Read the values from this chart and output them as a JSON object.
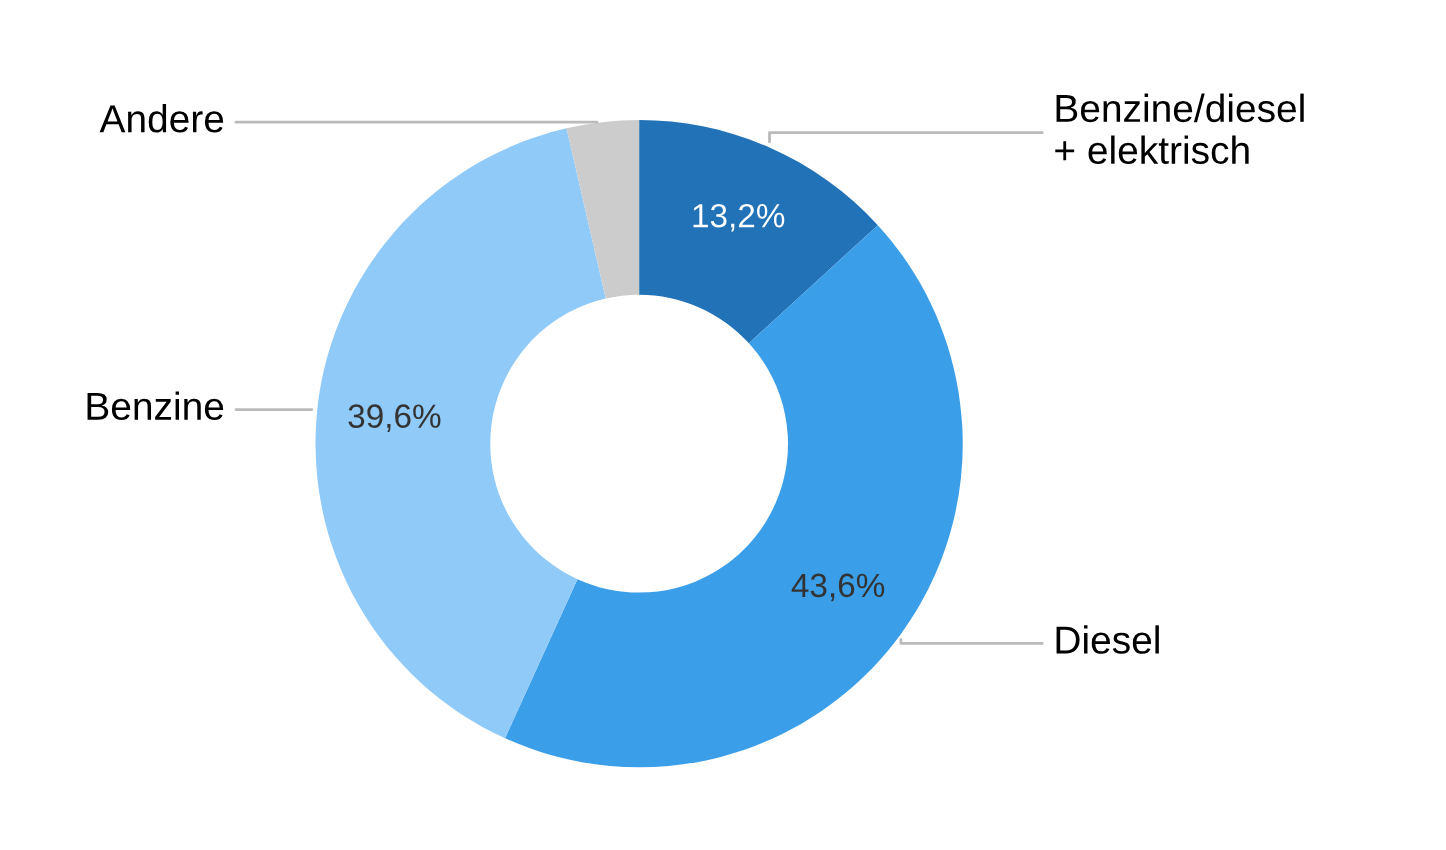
{
  "chart_data": {
    "type": "donut",
    "categories": [
      "Benzine/diesel\n+ elektrisch",
      "Diesel",
      "Benzine",
      "Andere"
    ],
    "values": [
      13.2,
      43.6,
      39.6,
      3.6
    ],
    "colors": [
      "#2272b8",
      "#3a9ee8",
      "#90caf9",
      "#cccccc"
    ],
    "value_labels": [
      "13,2%",
      "43,6%",
      "39,6%",
      null
    ],
    "legend": false
  }
}
